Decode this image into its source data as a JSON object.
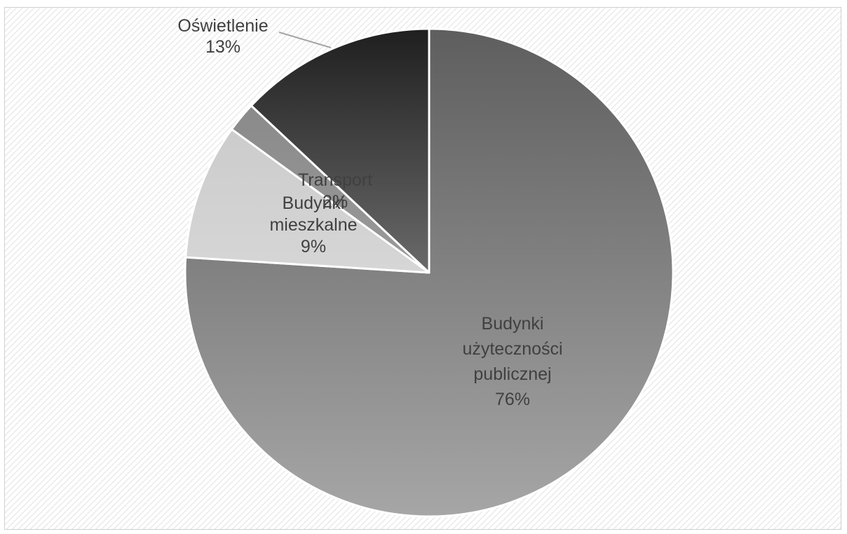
{
  "chart_data": {
    "type": "pie",
    "title": "",
    "slices": [
      {
        "name": "Budynki użyteczności publicznej",
        "value": 76,
        "label_lines": [
          "Budynki",
          "użyteczności",
          "publicznej",
          "76%"
        ],
        "color_top": "#5e5e5e",
        "color_bottom": "#a6a6a6"
      },
      {
        "name": "Budynki mieszkalne",
        "value": 9,
        "label_lines": [
          "Budynki",
          "mieszkalne",
          "9%"
        ],
        "color_top": "#cccccc",
        "color_bottom": "#d6d6d6"
      },
      {
        "name": "Transport",
        "value": 2,
        "label_lines": [
          "Transport",
          "2%"
        ],
        "color_top": "#8a8a8a",
        "color_bottom": "#9a9a9a"
      },
      {
        "name": "Oświetlenie",
        "value": 13,
        "label_lines": [
          "Oświetlenie",
          "13%"
        ],
        "color_top": "#1f1f1f",
        "color_bottom": "#6a6a6a"
      }
    ],
    "start_angle_deg": 0,
    "direction": "clockwise",
    "legend": "none",
    "background": "diagonal-hatch"
  }
}
